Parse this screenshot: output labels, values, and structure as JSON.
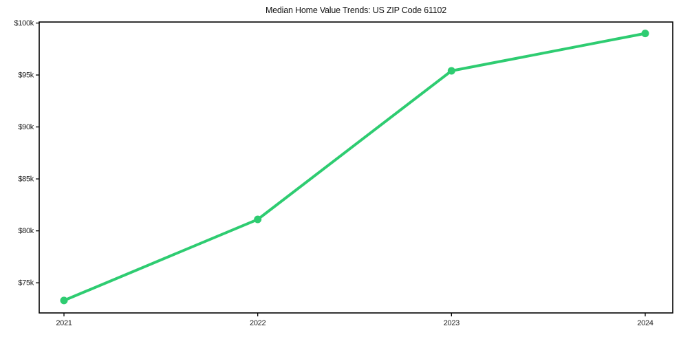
{
  "chart": {
    "title": "Median Home Value Trends: US ZIP Code 61102"
  },
  "chart_data": {
    "type": "line",
    "title": "Median Home Value Trends: US ZIP Code 61102",
    "xlabel": "",
    "ylabel": "",
    "categories": [
      "2021",
      "2022",
      "2023",
      "2024"
    ],
    "series": [
      {
        "name": "Median Home Value",
        "values": [
          73300,
          81100,
          95400,
          99000
        ],
        "color": "#2ecc71"
      }
    ],
    "y_ticks": [
      75000,
      80000,
      85000,
      90000,
      95000,
      100000
    ],
    "y_tick_labels": [
      "$75k",
      "$80k",
      "$85k",
      "$90k",
      "$95k",
      "$100k"
    ],
    "ylim": [
      72100,
      100100
    ],
    "grid": false,
    "legend": false,
    "marker": "circle",
    "axis_color": "#000000",
    "background_color": "#ffffff"
  }
}
